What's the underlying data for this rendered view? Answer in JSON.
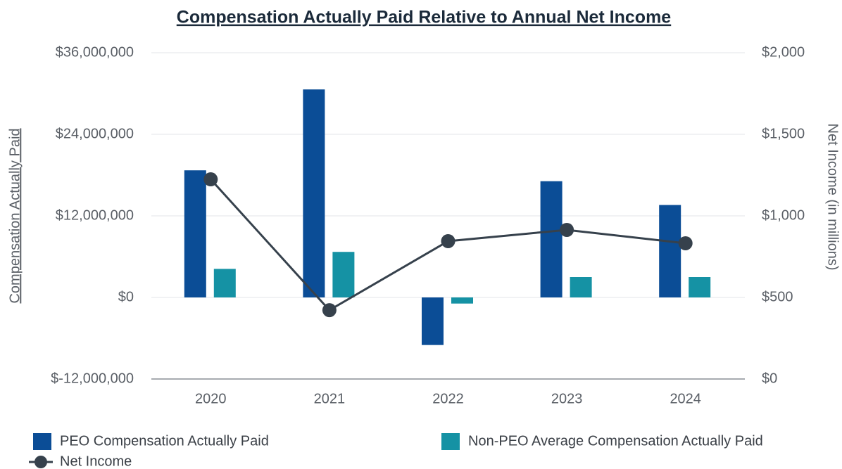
{
  "chart_data": {
    "type": "bar",
    "title": "Compensation Actually Paid Relative to Annual Net Income",
    "y_label": "Compensation Actually Paid",
    "y2_label": "Net Income (in millions)",
    "categories": [
      "2020",
      "2021",
      "2022",
      "2023",
      "2024"
    ],
    "series": [
      {
        "name": "PEO Compensation Actually Paid",
        "color": "#0b4d96",
        "type": "bar",
        "values": [
          18700000,
          30600000,
          -7000000,
          17100000,
          13600000
        ]
      },
      {
        "name": "Non-PEO Average Compensation Actually Paid",
        "color": "#1592a4",
        "type": "bar",
        "values": [
          4200000,
          6700000,
          -900000,
          3000000,
          3000000
        ]
      },
      {
        "name": "Net Income",
        "color": "#36414c",
        "type": "line",
        "axis": "y2",
        "values": [
          1224,
          422,
          845,
          914,
          832
        ]
      }
    ],
    "ylim": [
      -12000000,
      36000000
    ],
    "yticks": [
      {
        "value": -12000000,
        "label": "$-12,000,000"
      },
      {
        "value": 0,
        "label": "$0"
      },
      {
        "value": 12000000,
        "label": "$12,000,000"
      },
      {
        "value": 24000000,
        "label": "$24,000,000"
      },
      {
        "value": 36000000,
        "label": "$36,000,000"
      }
    ],
    "y2lim": [
      0,
      2000
    ],
    "y2ticks": [
      {
        "value": 0,
        "label": "$0"
      },
      {
        "value": 500,
        "label": "$500"
      },
      {
        "value": 1000,
        "label": "$1,000"
      },
      {
        "value": 1500,
        "label": "$1,500"
      },
      {
        "value": 2000,
        "label": "$2,000"
      }
    ],
    "grid": true,
    "legend": "bottom"
  }
}
